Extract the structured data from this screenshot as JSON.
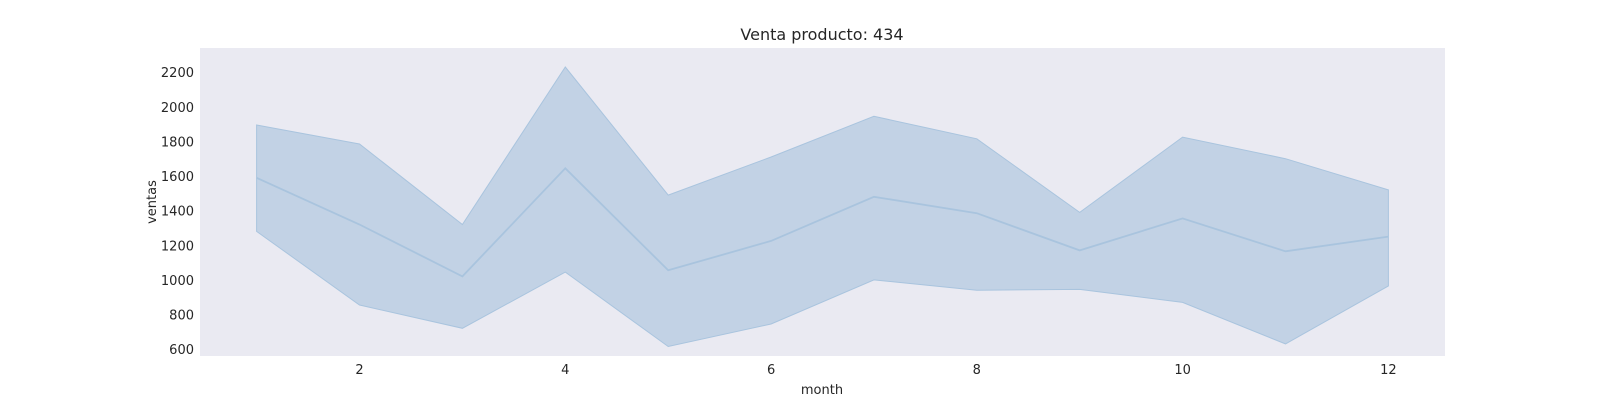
{
  "chart_data": {
    "type": "line",
    "title": "Venta producto: 434",
    "xlabel": "month",
    "ylabel": "ventas",
    "xlim": [
      0.45,
      12.55
    ],
    "ylim": [
      560,
      2340
    ],
    "xticks": [
      2,
      4,
      6,
      8,
      10,
      12
    ],
    "yticks": [
      600,
      800,
      1000,
      1200,
      1400,
      1600,
      1800,
      2000,
      2200
    ],
    "grid": false,
    "colors": {
      "line": "#a9c4de",
      "band": "#c2d2e5",
      "plot_bg": "#eaeaf2"
    },
    "series": [
      {
        "x": [
          1,
          2,
          3,
          4,
          5,
          6,
          7,
          8,
          9,
          10,
          11,
          12
        ],
        "values": [
          1590,
          1320,
          1020,
          1645,
          1055,
          1225,
          1480,
          1385,
          1170,
          1355,
          1165,
          1250
        ],
        "lower": [
          1280,
          855,
          720,
          1045,
          615,
          745,
          1000,
          940,
          945,
          870,
          630,
          965
        ],
        "upper": [
          1895,
          1785,
          1320,
          2230,
          1490,
          1710,
          1945,
          1815,
          1390,
          1825,
          1700,
          1520
        ]
      }
    ]
  }
}
